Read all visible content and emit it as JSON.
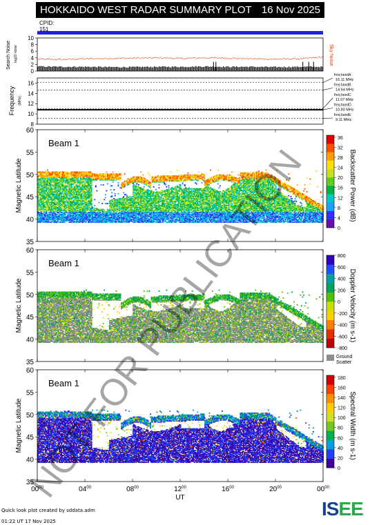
{
  "title": "HOKKAIDO WEST RADAR SUMMARY PLOT",
  "date": "16 Nov 2025",
  "cpid_label": "CPID:",
  "cpid_value": "151",
  "footer_line1": "Quick look plot created by sddata.adm",
  "footer_line2": "01:22 UT 17 Nov 2025",
  "logo_text": "ISEE",
  "watermark": "NOT FOR PUBLICATION",
  "colors": {
    "title_bg": "#000000",
    "cpid_bar": "#2020e0",
    "noise_sky": "#e04010",
    "noise_search": "#000000"
  },
  "chart_data": [
    {
      "type": "line",
      "panel": "noise",
      "ylabel": "Search Noise",
      "ylabel_units": "log10 noise",
      "right_label": "Sky Noise",
      "ylim": [
        0,
        10
      ],
      "yticks": [
        "0",
        "2",
        "4",
        "6",
        "8",
        "10"
      ],
      "series": [
        {
          "name": "Sky Noise",
          "x": [
            0,
            2,
            4,
            6,
            8,
            10,
            12,
            14,
            16,
            18,
            20,
            22,
            24
          ],
          "values": [
            3.7,
            3.6,
            3.8,
            3.9,
            4.0,
            4.1,
            3.9,
            4.1,
            4.0,
            3.8,
            3.7,
            3.8,
            4.3
          ]
        },
        {
          "name": "Search Noise",
          "x": [
            0,
            2,
            4,
            6,
            8,
            10,
            12,
            14,
            16,
            18,
            20,
            22,
            24
          ],
          "values": [
            1.4,
            1.3,
            1.3,
            1.2,
            1.2,
            1.3,
            1.3,
            1.4,
            1.3,
            1.3,
            1.2,
            1.3,
            1.3
          ]
        }
      ]
    },
    {
      "type": "line",
      "panel": "frequency",
      "ylabel": "Frequency",
      "ylabel_units": "(MHz)",
      "ylim": [
        8,
        17
      ],
      "yticks": [
        "8",
        "10",
        "12",
        "14",
        "16"
      ],
      "bands": [
        {
          "label": "freq bandA",
          "value_label": "16.11 MHz",
          "value": 16.11
        },
        {
          "label": "freq bandB",
          "value_label": "14.64 MHz",
          "value": 14.64
        },
        {
          "label": "freq bandC",
          "value_label": "11.07 MHz",
          "value": 11.07
        },
        {
          "label": "freq bandD",
          "value_label": "10.80 MHz",
          "value": 10.8
        },
        {
          "label": "freq bandE",
          "value_label": "9.11 MHz",
          "value": 9.11
        }
      ],
      "series": [
        {
          "name": "operating frequency",
          "x": [
            0,
            24
          ],
          "values": [
            10.8,
            10.8
          ]
        }
      ]
    },
    {
      "type": "heatmap",
      "panel": "power",
      "beam_label": "Beam  1",
      "ylabel": "Magnetic Latitude",
      "ylim": [
        35,
        60
      ],
      "yticks": [
        "35",
        "40",
        "45",
        "50",
        "55",
        "60"
      ],
      "colorbar_label": "Backscatter Power (dB)",
      "colorbar_ticks": [
        "0",
        "4",
        "8",
        "12",
        "16",
        "20",
        "24",
        "28",
        "32",
        "36"
      ]
    },
    {
      "type": "heatmap",
      "panel": "velocity",
      "beam_label": "Beam  1",
      "ylabel": "Magnetic Latitude",
      "ylim": [
        35,
        60
      ],
      "yticks": [
        "35",
        "40",
        "45",
        "50",
        "55",
        "60"
      ],
      "colorbar_label": "Doppler Velocity (m s-1)",
      "colorbar_ticks": [
        "800",
        "600",
        "400",
        "200",
        "0",
        "-200",
        "-400",
        "-600",
        "-800"
      ],
      "ground_scatter_label": "Ground Scatter"
    },
    {
      "type": "heatmap",
      "panel": "width",
      "beam_label": "Beam  1",
      "ylabel": "Magnetic Latitude",
      "ylim": [
        35,
        60
      ],
      "yticks": [
        "35",
        "40",
        "45",
        "50",
        "55",
        "60"
      ],
      "colorbar_label": "Spectral Width (m s-1)",
      "colorbar_ticks": [
        "0",
        "20",
        "40",
        "60",
        "80",
        "100",
        "120",
        "140",
        "160",
        "180"
      ]
    }
  ],
  "xaxis": {
    "label": "UT",
    "ticks": [
      "00",
      "04",
      "08",
      "12",
      "16",
      "20",
      "00"
    ],
    "tick_sup": "00",
    "range": [
      0,
      24
    ]
  }
}
